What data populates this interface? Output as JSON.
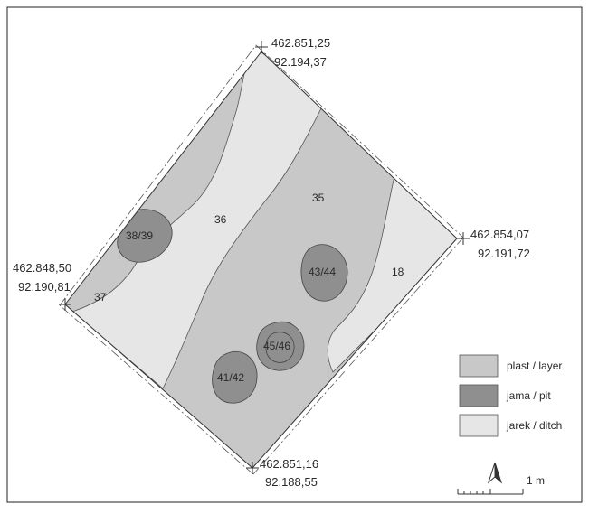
{
  "coordinates": {
    "north": [
      "462.851,25",
      "92.194,37"
    ],
    "east": [
      "462.854,07",
      "92.191,72"
    ],
    "west": [
      "462.848,50",
      "92.190,81"
    ],
    "south": [
      "462.851,16",
      "92.188,55"
    ]
  },
  "features": {
    "f36": "36",
    "f35": "35",
    "f37": "37",
    "f18": "18",
    "f38_39": "38/39",
    "f43_44": "43/44",
    "f45_46": "45/46",
    "f41_42": "41/42"
  },
  "legend": [
    {
      "label": "plast / layer",
      "color": "#c8c8c8"
    },
    {
      "label": "jama / pit",
      "color": "#8f8f8f"
    },
    {
      "label": "jarek / ditch",
      "color": "#e6e6e6"
    }
  ],
  "scale_bar": {
    "label": "1 m"
  },
  "colors": {
    "layer": "#c8c8c8",
    "pit": "#8f8f8f",
    "ditch": "#e6e6e6",
    "outline": "#333333"
  }
}
